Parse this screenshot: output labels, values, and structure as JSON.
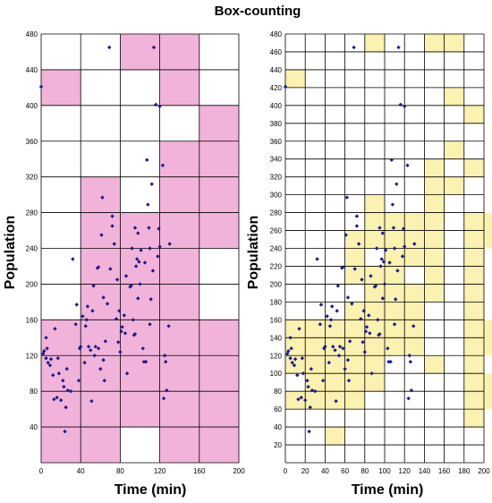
{
  "chart_data": {
    "type": "scatter",
    "title": "Box-counting",
    "colors": {
      "left_fill": "#f2b3da",
      "right_fill": "#fbf1b0",
      "point": "#1a1a8c",
      "grid": "#000000"
    },
    "points": [
      [
        0,
        421
      ],
      [
        2,
        122
      ],
      [
        3,
        125
      ],
      [
        5,
        117
      ],
      [
        5,
        140
      ],
      [
        6,
        128
      ],
      [
        7,
        112
      ],
      [
        9,
        109
      ],
      [
        10,
        116
      ],
      [
        12,
        98
      ],
      [
        13,
        71
      ],
      [
        14,
        150
      ],
      [
        16,
        73
      ],
      [
        17,
        117
      ],
      [
        18,
        100
      ],
      [
        20,
        70
      ],
      [
        22,
        92
      ],
      [
        23,
        85
      ],
      [
        24,
        35
      ],
      [
        25,
        62
      ],
      [
        26,
        105
      ],
      [
        27,
        81
      ],
      [
        30,
        80
      ],
      [
        32,
        228
      ],
      [
        35,
        155
      ],
      [
        36,
        177
      ],
      [
        38,
        92
      ],
      [
        39,
        128
      ],
      [
        40,
        130
      ],
      [
        42,
        164
      ],
      [
        44,
        112
      ],
      [
        45,
        153
      ],
      [
        46,
        160
      ],
      [
        47,
        175
      ],
      [
        48,
        130
      ],
      [
        50,
        126
      ],
      [
        51,
        69
      ],
      [
        52,
        170
      ],
      [
        53,
        198
      ],
      [
        54,
        120
      ],
      [
        55,
        130
      ],
      [
        57,
        218
      ],
      [
        58,
        219
      ],
      [
        58,
        128
      ],
      [
        60,
        105
      ],
      [
        61,
        255
      ],
      [
        62,
        297
      ],
      [
        63,
        115
      ],
      [
        63,
        185
      ],
      [
        64,
        92
      ],
      [
        65,
        136
      ],
      [
        67,
        178
      ],
      [
        69,
        465
      ],
      [
        70,
        217
      ],
      [
        72,
        265
      ],
      [
        72,
        276
      ],
      [
        74,
        245
      ],
      [
        76,
        161
      ],
      [
        77,
        205
      ],
      [
        78,
        135
      ],
      [
        79,
        170
      ],
      [
        80,
        124
      ],
      [
        81,
        147
      ],
      [
        82,
        152
      ],
      [
        84,
        165
      ],
      [
        85,
        145
      ],
      [
        86,
        209
      ],
      [
        87,
        100
      ],
      [
        90,
        197
      ],
      [
        91,
        198
      ],
      [
        92,
        240
      ],
      [
        93,
        160
      ],
      [
        94,
        143
      ],
      [
        95,
        144
      ],
      [
        95,
        263
      ],
      [
        96,
        220
      ],
      [
        97,
        228
      ],
      [
        98,
        257
      ],
      [
        98,
        184
      ],
      [
        99,
        225
      ],
      [
        100,
        200
      ],
      [
        101,
        238
      ],
      [
        103,
        128
      ],
      [
        104,
        113
      ],
      [
        105,
        224
      ],
      [
        106,
        113
      ],
      [
        107,
        339
      ],
      [
        108,
        289
      ],
      [
        109,
        263
      ],
      [
        110,
        155
      ],
      [
        110,
        240
      ],
      [
        111,
        183
      ],
      [
        112,
        312
      ],
      [
        113,
        215
      ],
      [
        114,
        465
      ],
      [
        116,
        401
      ],
      [
        118,
        231
      ],
      [
        119,
        262
      ],
      [
        120,
        399
      ],
      [
        120,
        242
      ],
      [
        123,
        333
      ],
      [
        124,
        72
      ],
      [
        125,
        120
      ],
      [
        126,
        113
      ],
      [
        127,
        81
      ],
      [
        129,
        153
      ],
      [
        130,
        245
      ]
    ],
    "left": {
      "xlabel": "Time (min)",
      "ylabel": "Population",
      "xlim": [
        0,
        200
      ],
      "ylim": [
        0,
        480
      ],
      "x_ticks": [
        "0",
        "40",
        "80",
        "120",
        "160",
        "200"
      ],
      "y_ticks": [
        "40",
        "80",
        "120",
        "160",
        "200",
        "240",
        "280",
        "320",
        "360",
        "400",
        "440",
        "480"
      ],
      "box_size": [
        40,
        40
      ],
      "boxes": [
        [
          0,
          0
        ],
        [
          0,
          1
        ],
        [
          0,
          2
        ],
        [
          0,
          3
        ],
        [
          0,
          10
        ],
        [
          1,
          0
        ],
        [
          1,
          1
        ],
        [
          1,
          2
        ],
        [
          1,
          3
        ],
        [
          1,
          4
        ],
        [
          1,
          5
        ],
        [
          1,
          6
        ],
        [
          1,
          7
        ],
        [
          2,
          1
        ],
        [
          2,
          2
        ],
        [
          2,
          3
        ],
        [
          2,
          4
        ],
        [
          2,
          5
        ],
        [
          2,
          6
        ],
        [
          2,
          11
        ],
        [
          3,
          0
        ],
        [
          3,
          1
        ],
        [
          3,
          2
        ],
        [
          3,
          3
        ],
        [
          3,
          4
        ],
        [
          3,
          5
        ],
        [
          3,
          6
        ],
        [
          3,
          7
        ],
        [
          3,
          8
        ],
        [
          3,
          10
        ],
        [
          3,
          11
        ],
        [
          4,
          0
        ],
        [
          4,
          1
        ],
        [
          4,
          2
        ],
        [
          4,
          3
        ],
        [
          4,
          6
        ],
        [
          4,
          7
        ],
        [
          4,
          8
        ],
        [
          4,
          9
        ]
      ]
    },
    "right": {
      "xlabel": "Time (min)",
      "ylabel": "Population",
      "xlim": [
        0,
        200
      ],
      "ylim": [
        0,
        480
      ],
      "x_ticks": [
        "0",
        "20",
        "40",
        "60",
        "80",
        "100",
        "120",
        "140",
        "160",
        "180",
        "200"
      ],
      "y_ticks": [
        "20",
        "40",
        "60",
        "80",
        "100",
        "120",
        "140",
        "160",
        "180",
        "200",
        "220",
        "240",
        "260",
        "280",
        "300",
        "320",
        "340",
        "360",
        "380",
        "400",
        "420",
        "440",
        "460",
        "480"
      ],
      "box_size": [
        20,
        20
      ],
      "boxes": [
        [
          0,
          21
        ],
        [
          0,
          3
        ],
        [
          0,
          5
        ],
        [
          0,
          6
        ],
        [
          0,
          7
        ],
        [
          1,
          3
        ],
        [
          1,
          4
        ],
        [
          1,
          5
        ],
        [
          1,
          6
        ],
        [
          1,
          7
        ],
        [
          2,
          1
        ],
        [
          2,
          3
        ],
        [
          2,
          4
        ],
        [
          2,
          5
        ],
        [
          2,
          6
        ],
        [
          2,
          7
        ],
        [
          3,
          3
        ],
        [
          3,
          4
        ],
        [
          3,
          5
        ],
        [
          3,
          6
        ],
        [
          3,
          7
        ],
        [
          3,
          8
        ],
        [
          3,
          10
        ],
        [
          3,
          11
        ],
        [
          3,
          12
        ],
        [
          4,
          4
        ],
        [
          4,
          5
        ],
        [
          4,
          6
        ],
        [
          4,
          7
        ],
        [
          4,
          8
        ],
        [
          4,
          9
        ],
        [
          4,
          10
        ],
        [
          4,
          12
        ],
        [
          4,
          13
        ],
        [
          4,
          14
        ],
        [
          4,
          23
        ],
        [
          5,
          6
        ],
        [
          5,
          7
        ],
        [
          5,
          8
        ],
        [
          5,
          9
        ],
        [
          5,
          10
        ],
        [
          5,
          11
        ],
        [
          5,
          12
        ],
        [
          5,
          13
        ],
        [
          6,
          6
        ],
        [
          6,
          7
        ],
        [
          6,
          8
        ],
        [
          6,
          9
        ],
        [
          6,
          11
        ],
        [
          6,
          12
        ],
        [
          6,
          13
        ],
        [
          7,
          5
        ],
        [
          7,
          9
        ],
        [
          7,
          10
        ],
        [
          7,
          11
        ],
        [
          7,
          12
        ],
        [
          7,
          13
        ],
        [
          7,
          14
        ],
        [
          7,
          15
        ],
        [
          7,
          16
        ],
        [
          7,
          23
        ],
        [
          8,
          15
        ],
        [
          8,
          17
        ],
        [
          8,
          20
        ],
        [
          8,
          23
        ],
        [
          9,
          2
        ],
        [
          9,
          3
        ],
        [
          9,
          4
        ],
        [
          9,
          5
        ],
        [
          9,
          6
        ],
        [
          9,
          7
        ],
        [
          9,
          8
        ],
        [
          9,
          9
        ],
        [
          9,
          10
        ],
        [
          9,
          11
        ],
        [
          9,
          12
        ],
        [
          9,
          13
        ],
        [
          9,
          16
        ],
        [
          9,
          19
        ],
        [
          10,
          3
        ],
        [
          10,
          4
        ],
        [
          10,
          6
        ],
        [
          10,
          7
        ],
        [
          10,
          12
        ],
        [
          10,
          13
        ]
      ]
    }
  }
}
